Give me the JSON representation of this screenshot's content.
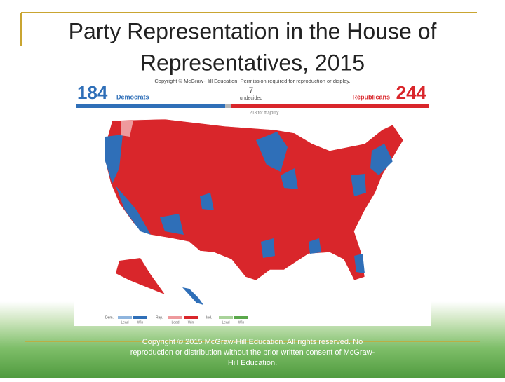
{
  "header": {
    "title_lines": [
      "Party Representation in the House of",
      "Representatives, 2015"
    ]
  },
  "map": {
    "democrats": {
      "count": 184,
      "label": "Democrats",
      "color": "#2f6fb8"
    },
    "undecided": {
      "count": 7,
      "label": "undecided",
      "color": "#b5b5b5"
    },
    "republicans": {
      "count": 244,
      "label": "Republicans",
      "color": "#d9262b"
    },
    "majority_note": "218 for majority",
    "image_credit": "Copyright © McGraw-Hill Education. Permission required for reproduction or display.",
    "legend": [
      {
        "party": "Dem.",
        "items": [
          "Lead",
          "Win"
        ],
        "colors": [
          "#8fb5de",
          "#2f6fb8"
        ]
      },
      {
        "party": "Rep.",
        "items": [
          "Lead",
          "Win"
        ],
        "colors": [
          "#ee9a9d",
          "#d9262b"
        ]
      },
      {
        "party": "Ind.",
        "items": [
          "Lead",
          "Win"
        ],
        "colors": [
          "#a9d39a",
          "#5aa84b"
        ]
      }
    ]
  },
  "footer": {
    "copyright_lines": [
      "Copyright © 2015 McGraw-Hill Education. All rights reserved. No",
      "reproduction or distribution without the prior written consent of McGraw-",
      "Hill Education."
    ]
  }
}
